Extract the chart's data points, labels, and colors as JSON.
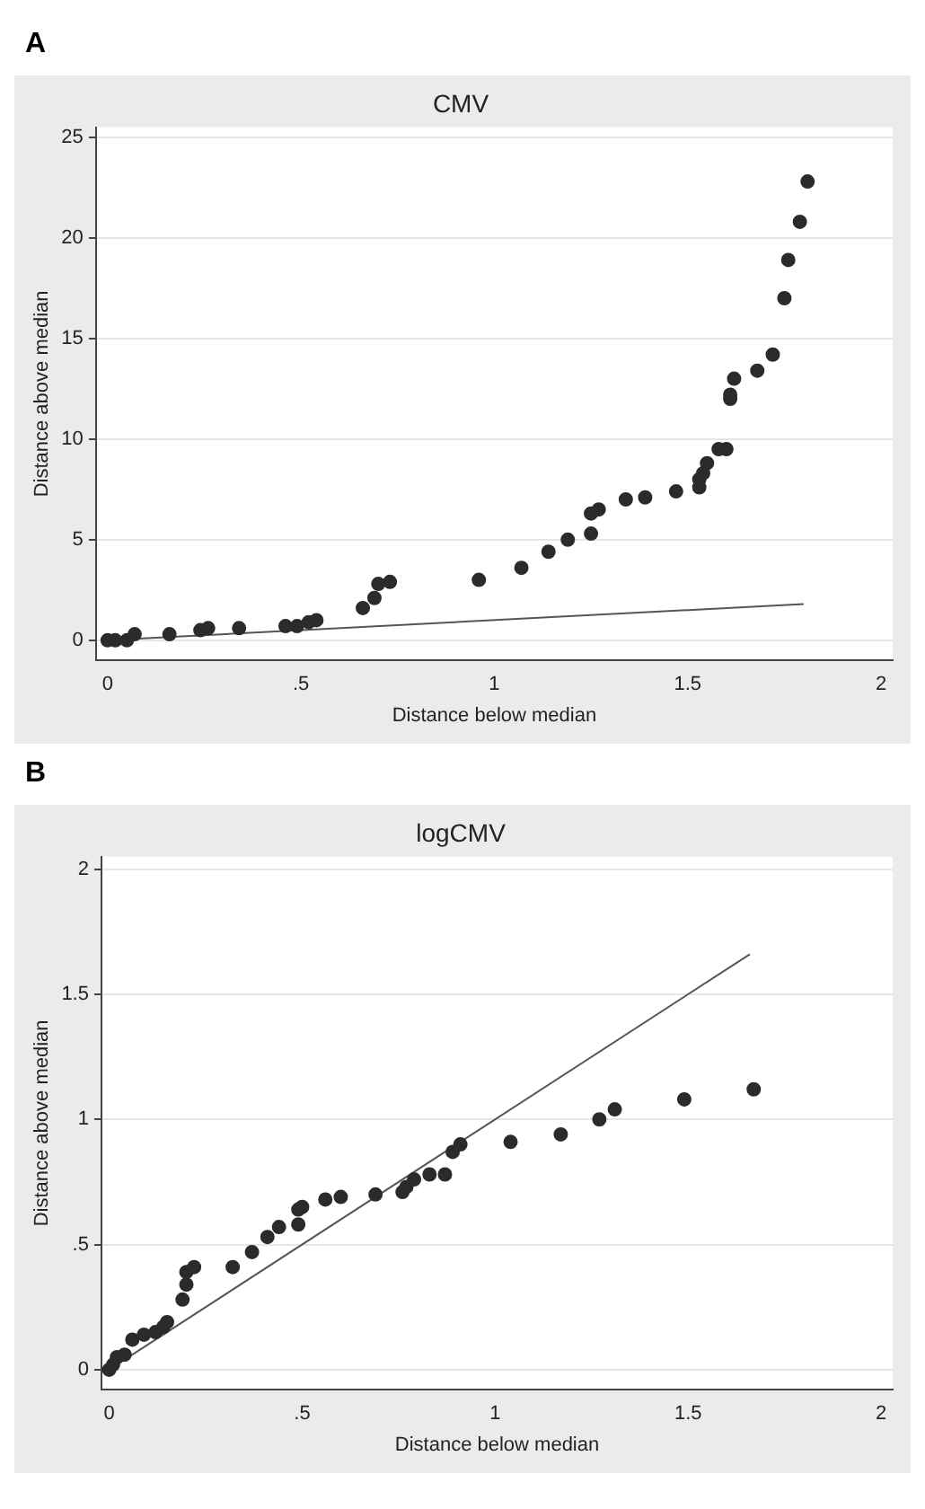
{
  "chart_data": [
    {
      "type": "scatter",
      "title": "CMV",
      "xlabel": "Distance below median",
      "ylabel": "Distance above median",
      "annotations": [
        "A"
      ],
      "xlim": [
        -0.03,
        2.03
      ],
      "ylim": [
        -1,
        25.5
      ],
      "xticks": [
        0,
        {
          "value": 0.5,
          "label": ".5"
        },
        1,
        1.5,
        2
      ],
      "yticks": [
        0,
        5,
        10,
        15,
        20,
        25
      ],
      "grid": "y",
      "series": [
        {
          "type": "scatter",
          "marker": "circle",
          "color": "#2b2b2b",
          "x": [
            0,
            0.02,
            0.05,
            0.07,
            0.16,
            0.24,
            0.26,
            0.34,
            0.46,
            0.49,
            0.52,
            0.54,
            0.66,
            0.69,
            0.7,
            0.73,
            0.96,
            1.07,
            1.14,
            1.19,
            1.25,
            1.25,
            1.27,
            1.34,
            1.39,
            1.47,
            1.53,
            1.53,
            1.54,
            1.55,
            1.58,
            1.6,
            1.61,
            1.61,
            1.62,
            1.68,
            1.72,
            1.75,
            1.76,
            1.79,
            1.81
          ],
          "values": [
            0,
            0,
            0,
            0.3,
            0.3,
            0.5,
            0.6,
            0.6,
            0.7,
            0.7,
            0.9,
            1.0,
            1.6,
            2.1,
            2.8,
            2.9,
            3.0,
            3.6,
            4.4,
            5.0,
            5.3,
            6.3,
            6.5,
            7.0,
            7.1,
            7.4,
            7.6,
            8.0,
            8.3,
            8.8,
            9.5,
            9.5,
            12.0,
            12.2,
            13.0,
            13.4,
            14.2,
            17.0,
            18.9,
            20.8,
            22.8
          ]
        },
        {
          "type": "line",
          "marker": "none",
          "color": "#555555",
          "line_style": "solid",
          "x": [
            0,
            1.8
          ],
          "values": [
            0,
            1.8
          ]
        }
      ]
    },
    {
      "type": "scatter",
      "title": "logCMV",
      "xlabel": "Distance below median",
      "ylabel": "Distance above median",
      "annotations": [
        "B"
      ],
      "xlim": [
        -0.02,
        2.03
      ],
      "ylim": [
        -0.08,
        2.05
      ],
      "xticks": [
        0,
        {
          "value": 0.5,
          "label": ".5"
        },
        1,
        1.5,
        2
      ],
      "yticks": [
        0,
        {
          "value": 0.5,
          "label": ".5"
        },
        1,
        1.5,
        2
      ],
      "grid": "y",
      "series": [
        {
          "type": "scatter",
          "marker": "circle",
          "color": "#2b2b2b",
          "x": [
            0,
            0.01,
            0.02,
            0.04,
            0.06,
            0.09,
            0.12,
            0.14,
            0.15,
            0.19,
            0.2,
            0.2,
            0.22,
            0.32,
            0.37,
            0.41,
            0.44,
            0.49,
            0.49,
            0.5,
            0.56,
            0.6,
            0.69,
            0.76,
            0.77,
            0.79,
            0.83,
            0.87,
            0.89,
            0.91,
            1.04,
            1.17,
            1.27,
            1.31,
            1.49,
            1.67
          ],
          "values": [
            0,
            0.02,
            0.05,
            0.06,
            0.12,
            0.14,
            0.15,
            0.17,
            0.19,
            0.28,
            0.34,
            0.39,
            0.41,
            0.41,
            0.47,
            0.53,
            0.57,
            0.58,
            0.64,
            0.65,
            0.68,
            0.69,
            0.7,
            0.71,
            0.73,
            0.76,
            0.78,
            0.78,
            0.87,
            0.9,
            0.91,
            0.94,
            1.0,
            1.04,
            1.08,
            1.12
          ]
        },
        {
          "type": "line",
          "marker": "none",
          "color": "#555555",
          "line_style": "solid",
          "x": [
            0,
            1.66
          ],
          "values": [
            0,
            1.66
          ]
        }
      ]
    }
  ]
}
